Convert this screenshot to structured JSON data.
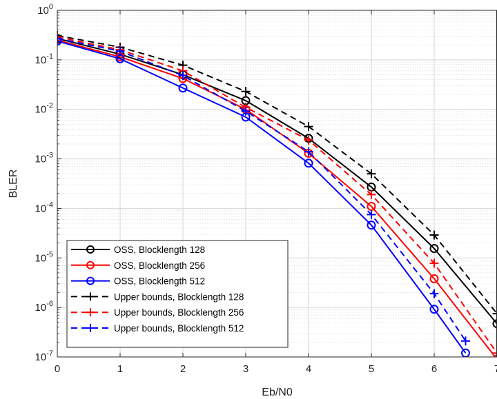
{
  "chart_data": {
    "type": "line",
    "title": "",
    "xlabel": "Eb/N0",
    "ylabel": "BLER",
    "xlim": [
      0,
      7
    ],
    "ylim_log10": [
      -7,
      0
    ],
    "yscale": "log",
    "grid": true,
    "minor_grid": true,
    "legend_position": "bottom-left",
    "x_ticks": [
      "0",
      "1",
      "2",
      "3",
      "4",
      "5",
      "6",
      "7"
    ],
    "y_ticks": [
      {
        "base": "10",
        "exp": "0"
      },
      {
        "base": "10",
        "exp": "-1"
      },
      {
        "base": "10",
        "exp": "-2"
      },
      {
        "base": "10",
        "exp": "-3"
      },
      {
        "base": "10",
        "exp": "-4"
      },
      {
        "base": "10",
        "exp": "-5"
      },
      {
        "base": "10",
        "exp": "-6"
      },
      {
        "base": "10",
        "exp": "-7"
      }
    ],
    "series": [
      {
        "name": "OSS, Blocklength 128",
        "color": "#000000",
        "dash": false,
        "marker": "circle",
        "x": [
          0,
          1,
          2,
          3,
          4,
          5,
          6,
          7
        ],
        "y": [
          0.27,
          0.13,
          0.05,
          0.015,
          0.0026,
          0.00027,
          1.55e-05,
          4.7e-07
        ]
      },
      {
        "name": "OSS, Blocklength 256",
        "color": "#ff0000",
        "dash": false,
        "marker": "circle",
        "x": [
          0,
          1,
          2,
          3,
          4,
          5,
          6,
          7
        ],
        "y": [
          0.25,
          0.115,
          0.042,
          0.01,
          0.0013,
          0.00011,
          3.8e-06,
          9e-08
        ]
      },
      {
        "name": "OSS, Blocklength 512",
        "color": "#0000ff",
        "dash": false,
        "marker": "circle",
        "x": [
          0,
          1,
          2,
          3,
          4,
          5,
          6,
          6.5
        ],
        "y": [
          0.24,
          0.105,
          0.027,
          0.007,
          0.00082,
          4.6e-05,
          9.2e-07,
          1.2e-07
        ]
      },
      {
        "name": "Upper bounds, Blocklength 128",
        "color": "#000000",
        "dash": true,
        "marker": "plus",
        "x": [
          0,
          1,
          2,
          3,
          4,
          5,
          6,
          7
        ],
        "y": [
          0.31,
          0.18,
          0.078,
          0.023,
          0.0045,
          0.0005,
          2.9e-05,
          7.5e-07
        ]
      },
      {
        "name": "Upper bounds, Blocklength 256",
        "color": "#ff0000",
        "dash": true,
        "marker": "plus",
        "x": [
          0,
          1,
          2,
          3,
          4,
          5,
          6,
          7
        ],
        "y": [
          0.29,
          0.16,
          0.06,
          0.011,
          0.0024,
          0.00019,
          7.8e-06,
          1.2e-07
        ]
      },
      {
        "name": "Upper bounds, Blocklength 512",
        "color": "#0000ff",
        "dash": true,
        "marker": "plus",
        "x": [
          0,
          1,
          2,
          3,
          4,
          5,
          6,
          6.5
        ],
        "y": [
          0.27,
          0.15,
          0.048,
          0.0092,
          0.0014,
          7.5e-05,
          1.9e-06,
          2.1e-07
        ]
      }
    ]
  }
}
